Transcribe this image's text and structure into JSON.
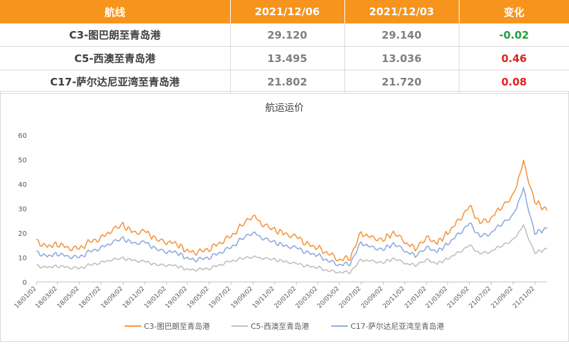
{
  "table": {
    "headers": [
      "航线",
      "2021/12/06",
      "2021/12/03",
      "变化"
    ],
    "rows": [
      {
        "route": "C3-图巴朗至青岛港",
        "v1": "29.120",
        "v2": "29.140",
        "change": "-0.02",
        "dir": "neg"
      },
      {
        "route": "C5-西澳至青岛港",
        "v1": "13.495",
        "v2": "13.036",
        "change": "0.46",
        "dir": "pos"
      },
      {
        "route": "C17-萨尔达尼亚湾至青岛港",
        "v1": "21.802",
        "v2": "21.720",
        "change": "0.08",
        "dir": "pos"
      }
    ]
  },
  "colors": {
    "header_bg": "#f7941d",
    "C3": "#f5953f",
    "C5": "#bfbfbf",
    "C17": "#8faadc",
    "neg": "#1e9e3e",
    "pos": "#e02020"
  },
  "chart_data": {
    "type": "line",
    "title": "航运运价",
    "ylim": [
      0,
      60
    ],
    "yticks": [
      0,
      10,
      20,
      30,
      40,
      50,
      60
    ],
    "grid": false,
    "legend": "bottom",
    "x_ticks": [
      "18/01/02",
      "18/03/02",
      "18/05/02",
      "18/07/02",
      "18/09/02",
      "18/11/02",
      "19/01/02",
      "19/03/02",
      "19/05/02",
      "19/07/02",
      "19/09/02",
      "19/11/02",
      "20/01/02",
      "20/03/02",
      "20/05/02",
      "20/07/02",
      "20/09/02",
      "20/11/02",
      "21/01/02",
      "21/03/02",
      "21/05/02",
      "21/07/02",
      "21/09/02",
      "21/11/02"
    ],
    "x_range": [
      "18/01/02",
      "21/12/06"
    ],
    "series": [
      {
        "name": "C3-图巴朗至青岛港",
        "points": [
          [
            "18/01/02",
            16.5
          ],
          [
            "18/02/01",
            14.5
          ],
          [
            "18/03/02",
            15.5
          ],
          [
            "18/04/01",
            14.0
          ],
          [
            "18/05/02",
            13.5
          ],
          [
            "18/06/01",
            16.5
          ],
          [
            "18/07/02",
            18.0
          ],
          [
            "18/08/01",
            21.0
          ],
          [
            "18/09/02",
            23.0
          ],
          [
            "18/10/01",
            20.5
          ],
          [
            "18/11/02",
            21.0
          ],
          [
            "18/12/01",
            17.5
          ],
          [
            "19/01/02",
            16.5
          ],
          [
            "19/02/01",
            15.5
          ],
          [
            "19/03/02",
            12.5
          ],
          [
            "19/04/01",
            12.0
          ],
          [
            "19/05/02",
            13.5
          ],
          [
            "19/06/01",
            16.0
          ],
          [
            "19/07/02",
            18.5
          ],
          [
            "19/08/01",
            23.0
          ],
          [
            "19/09/02",
            27.5
          ],
          [
            "19/10/01",
            23.0
          ],
          [
            "19/11/02",
            21.0
          ],
          [
            "19/12/01",
            20.0
          ],
          [
            "20/01/02",
            18.5
          ],
          [
            "20/02/01",
            15.5
          ],
          [
            "20/03/02",
            14.0
          ],
          [
            "20/04/01",
            11.5
          ],
          [
            "20/05/02",
            9.0
          ],
          [
            "20/06/01",
            10.0
          ],
          [
            "20/07/02",
            20.0
          ],
          [
            "20/08/01",
            18.0
          ],
          [
            "20/09/02",
            17.5
          ],
          [
            "20/10/01",
            20.0
          ],
          [
            "20/11/02",
            16.0
          ],
          [
            "20/12/01",
            14.0
          ],
          [
            "21/01/02",
            18.0
          ],
          [
            "21/02/01",
            16.0
          ],
          [
            "21/03/02",
            20.0
          ],
          [
            "21/04/01",
            25.0
          ],
          [
            "21/05/02",
            31.0
          ],
          [
            "21/06/01",
            24.0
          ],
          [
            "21/07/02",
            26.0
          ],
          [
            "21/08/01",
            31.0
          ],
          [
            "21/09/02",
            35.0
          ],
          [
            "21/10/01",
            49.0
          ],
          [
            "21/11/02",
            33.0
          ],
          [
            "21/12/06",
            29.12
          ]
        ]
      },
      {
        "name": "C5-西澳至青岛港",
        "points": [
          [
            "18/01/02",
            6.5
          ],
          [
            "18/02/01",
            6.0
          ],
          [
            "18/03/02",
            6.5
          ],
          [
            "18/04/01",
            6.0
          ],
          [
            "18/05/02",
            5.5
          ],
          [
            "18/06/01",
            7.0
          ],
          [
            "18/07/02",
            8.0
          ],
          [
            "18/08/01",
            9.0
          ],
          [
            "18/09/02",
            9.5
          ],
          [
            "18/10/01",
            9.0
          ],
          [
            "18/11/02",
            8.5
          ],
          [
            "18/12/01",
            7.0
          ],
          [
            "19/01/02",
            7.0
          ],
          [
            "19/02/01",
            6.5
          ],
          [
            "19/03/02",
            5.0
          ],
          [
            "19/04/01",
            5.0
          ],
          [
            "19/05/02",
            5.5
          ],
          [
            "19/06/01",
            7.0
          ],
          [
            "19/07/02",
            8.5
          ],
          [
            "19/08/01",
            9.5
          ],
          [
            "19/09/02",
            10.5
          ],
          [
            "19/10/01",
            9.5
          ],
          [
            "19/11/02",
            9.0
          ],
          [
            "19/12/01",
            8.5
          ],
          [
            "20/01/02",
            7.5
          ],
          [
            "20/02/01",
            6.5
          ],
          [
            "20/03/02",
            6.0
          ],
          [
            "20/04/01",
            4.5
          ],
          [
            "20/05/02",
            4.0
          ],
          [
            "20/06/01",
            4.0
          ],
          [
            "20/07/02",
            9.0
          ],
          [
            "20/08/01",
            8.5
          ],
          [
            "20/09/02",
            8.0
          ],
          [
            "20/10/01",
            9.5
          ],
          [
            "20/11/02",
            7.5
          ],
          [
            "20/12/01",
            7.0
          ],
          [
            "21/01/02",
            9.0
          ],
          [
            "21/02/01",
            7.5
          ],
          [
            "21/03/02",
            9.5
          ],
          [
            "21/04/01",
            12.0
          ],
          [
            "21/05/02",
            15.0
          ],
          [
            "21/06/01",
            11.5
          ],
          [
            "21/07/02",
            12.5
          ],
          [
            "21/08/01",
            15.0
          ],
          [
            "21/09/02",
            17.0
          ],
          [
            "21/10/01",
            23.0
          ],
          [
            "21/11/02",
            12.0
          ],
          [
            "21/12/06",
            13.495
          ]
        ]
      },
      {
        "name": "C17-萨尔达尼亚湾至青岛港",
        "points": [
          [
            "18/01/02",
            12.0
          ],
          [
            "18/02/01",
            10.5
          ],
          [
            "18/03/02",
            11.5
          ],
          [
            "18/04/01",
            10.5
          ],
          [
            "18/05/02",
            10.0
          ],
          [
            "18/06/01",
            12.5
          ],
          [
            "18/07/02",
            14.0
          ],
          [
            "18/08/01",
            16.0
          ],
          [
            "18/09/02",
            17.5
          ],
          [
            "18/10/01",
            16.0
          ],
          [
            "18/11/02",
            16.5
          ],
          [
            "18/12/01",
            13.5
          ],
          [
            "19/01/02",
            12.5
          ],
          [
            "19/02/01",
            12.0
          ],
          [
            "19/03/02",
            9.5
          ],
          [
            "19/04/01",
            9.0
          ],
          [
            "19/05/02",
            10.0
          ],
          [
            "19/06/01",
            12.0
          ],
          [
            "19/07/02",
            14.0
          ],
          [
            "19/08/01",
            17.5
          ],
          [
            "19/09/02",
            20.5
          ],
          [
            "19/10/01",
            17.5
          ],
          [
            "19/11/02",
            16.0
          ],
          [
            "19/12/01",
            15.0
          ],
          [
            "20/01/02",
            14.0
          ],
          [
            "20/02/01",
            12.0
          ],
          [
            "20/03/02",
            11.0
          ],
          [
            "20/04/01",
            8.5
          ],
          [
            "20/05/02",
            7.0
          ],
          [
            "20/06/01",
            7.5
          ],
          [
            "20/07/02",
            16.0
          ],
          [
            "20/08/01",
            14.0
          ],
          [
            "20/09/02",
            13.5
          ],
          [
            "20/10/01",
            15.5
          ],
          [
            "20/11/02",
            12.5
          ],
          [
            "20/12/01",
            11.0
          ],
          [
            "21/01/02",
            14.0
          ],
          [
            "21/02/01",
            12.5
          ],
          [
            "21/03/02",
            15.5
          ],
          [
            "21/04/01",
            19.5
          ],
          [
            "21/05/02",
            24.0
          ],
          [
            "21/06/01",
            18.5
          ],
          [
            "21/07/02",
            20.0
          ],
          [
            "21/08/01",
            24.0
          ],
          [
            "21/09/02",
            27.0
          ],
          [
            "21/10/01",
            38.0
          ],
          [
            "21/11/02",
            20.0
          ],
          [
            "21/12/06",
            21.802
          ]
        ]
      }
    ]
  }
}
